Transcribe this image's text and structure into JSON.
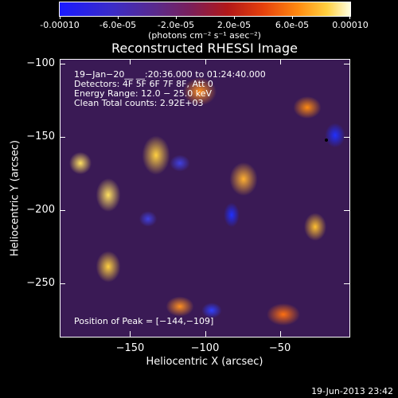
{
  "colorbar": {
    "tick_labels": [
      "-0.00010",
      "-6.0e-05",
      "-2.0e-05",
      "2.0e-05",
      "6.0e-05",
      "0.00010"
    ],
    "tick_values": [
      -0.0001,
      -6e-05,
      -2e-05,
      2e-05,
      6e-05,
      0.0001
    ],
    "unit_label": "(photons cm⁻² s⁻¹ asec⁻²)",
    "range": [
      -0.0001,
      0.0001
    ]
  },
  "chart_data": {
    "type": "heatmap",
    "title": "Reconstructed RHESSI Image",
    "xlabel": "Heliocentric X (arcsec)",
    "ylabel": "Heliocentric Y (arcsec)",
    "xlim": [
      -197,
      -3
    ],
    "ylim": [
      -287,
      -97
    ],
    "x_ticks": [
      -150,
      -100,
      -50
    ],
    "x_tick_labels": [
      "−150",
      "−100",
      "−50"
    ],
    "y_ticks": [
      -100,
      -150,
      -200,
      -250
    ],
    "y_tick_labels": [
      "−100",
      "−150",
      "−200",
      "−250"
    ],
    "annotations": [
      "19−Jan−20__ __:20:36.000 to 01:24:40.000",
      "Detectors: 4F 5F 6F 7F 8F, Att 0",
      "Energy Range: 12.0 − 25.0 keV",
      "Clean    Total counts: 2.92E+03"
    ],
    "peak_label": "Position of Peak = [−144,−109]",
    "peak_position": [
      -144,
      -109
    ],
    "colormap": "rainbow-heat"
  },
  "timestamp": "19-Jun-2013 23:42"
}
